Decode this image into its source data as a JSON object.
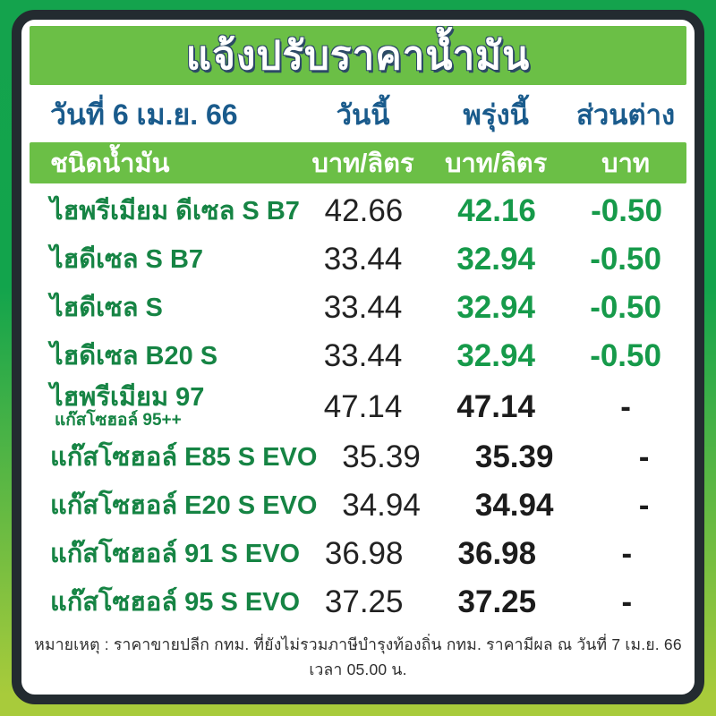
{
  "title": "แจ้งปรับราคาน้ำมัน",
  "date_header": {
    "date": "วันที่ 6 เม.ย. 66",
    "today_label": "วันนี้",
    "tomorrow_label": "พรุ่งนี้",
    "diff_label": "ส่วนต่าง"
  },
  "column_header": {
    "fuel_type": "ชนิดน้ำมัน",
    "unit_today": "บาท/ลิตร",
    "unit_tomorrow": "บาท/ลิตร",
    "unit_diff": "บาท"
  },
  "rows": [
    {
      "name": "ไฮพรีเมียม ดีเซล S B7",
      "today": "42.66",
      "tomorrow": "42.16",
      "diff": "-0.50",
      "changed": true
    },
    {
      "name": "ไฮดีเซล S B7",
      "today": "33.44",
      "tomorrow": "32.94",
      "diff": "-0.50",
      "changed": true
    },
    {
      "name": "ไฮดีเซล S",
      "today": "33.44",
      "tomorrow": "32.94",
      "diff": "-0.50",
      "changed": true
    },
    {
      "name": "ไฮดีเซล B20 S",
      "today": "33.44",
      "tomorrow": "32.94",
      "diff": "-0.50",
      "changed": true
    },
    {
      "name": "ไฮพรีเมียม 97",
      "subname": "แก๊สโซฮอล์ 95++",
      "today": "47.14",
      "tomorrow": "47.14",
      "diff": "-",
      "changed": false
    },
    {
      "name": "แก๊สโซฮอล์ E85 S EVO",
      "today": "35.39",
      "tomorrow": "35.39",
      "diff": "-",
      "changed": false
    },
    {
      "name": "แก๊สโซฮอล์ E20 S EVO",
      "today": "34.94",
      "tomorrow": "34.94",
      "diff": "-",
      "changed": false
    },
    {
      "name": "แก๊สโซฮอล์ 91 S EVO",
      "today": "36.98",
      "tomorrow": "36.98",
      "diff": "-",
      "changed": false
    },
    {
      "name": "แก๊สโซฮอล์ 95 S EVO",
      "today": "37.25",
      "tomorrow": "37.25",
      "diff": "-",
      "changed": false
    }
  ],
  "note": "หมายเหตุ : ราคาขายปลีก กทม. ที่ยังไม่รวมภาษีบำรุงท้องถิ่น กทม. ราคามีผล ณ วันที่ 7 เม.ย. 66 เวลา 05.00 น.",
  "colors": {
    "outer_gradient_top": "#14a34d",
    "outer_gradient_bottom": "#a8cb3b",
    "card_border": "#232b30",
    "bar_green": "#6bbf46",
    "header_blue": "#1a5b8c",
    "fuel_name_green": "#168444",
    "price_change_green": "#169a4a",
    "price_black": "#1c1c1c"
  }
}
